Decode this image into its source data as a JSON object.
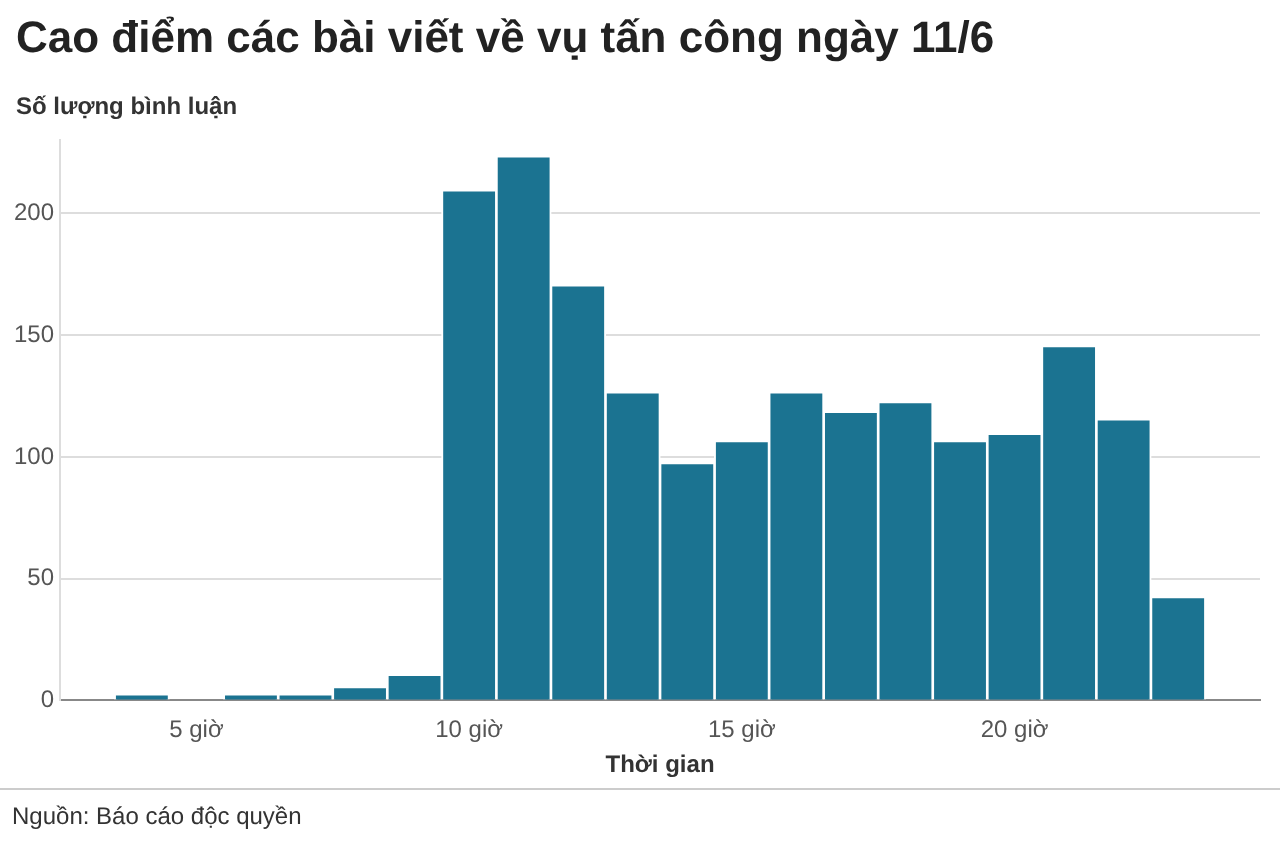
{
  "chart_data": {
    "type": "histogram",
    "title": "Cao điểm các bài viết về vụ tấn công ngày 11/6",
    "ylabel": "Số lượng bình luận",
    "xlabel": "Thời gian",
    "bins": [
      3.5,
      4.5,
      5.5,
      6.5,
      7.5,
      8.5,
      9.5,
      10.5,
      11.5,
      12.5,
      13.5,
      14.5,
      15.5,
      16.5,
      17.5,
      18.5,
      19.5,
      20.5,
      21.5,
      22.5,
      23.5
    ],
    "values": [
      2,
      0,
      2,
      2,
      5,
      10,
      209,
      223,
      170,
      126,
      97,
      106,
      126,
      118,
      122,
      106,
      109,
      145,
      115,
      42
    ],
    "color": "#1b7391",
    "xlim": [
      2.5,
      24.5
    ],
    "xticks": [
      {
        "value": 5,
        "label": "5 giờ"
      },
      {
        "value": 10,
        "label": "10 giờ"
      },
      {
        "value": 15,
        "label": "15 giờ"
      },
      {
        "value": 20,
        "label": "20 giờ"
      }
    ],
    "ylim": [
      0,
      230
    ],
    "yticks": [
      0,
      50,
      100,
      150,
      200
    ],
    "grid": "y",
    "annotations": [
      "Nguồn: Báo cáo độc quyền"
    ]
  }
}
